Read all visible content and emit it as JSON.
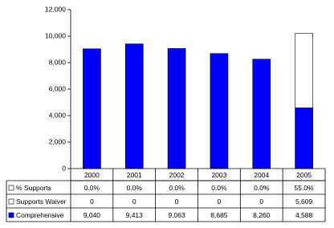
{
  "chart_data": {
    "type": "bar",
    "stacked": true,
    "categories": [
      "2000",
      "2001",
      "2002",
      "2003",
      "2004",
      "2005"
    ],
    "series": [
      {
        "name": "Comprehensive",
        "color": "#0000ff",
        "values": [
          9040,
          9413,
          9063,
          8685,
          8260,
          4588
        ],
        "value_labels": [
          "9,040",
          "9,413",
          "9,063",
          "8,685",
          "8,260",
          "4,588"
        ]
      },
      {
        "name": "Supports Waiver",
        "color": "#ffffff",
        "values": [
          0,
          0,
          0,
          0,
          0,
          5609
        ],
        "value_labels": [
          "0",
          "0",
          "0",
          "0",
          "0",
          "5,609"
        ]
      }
    ],
    "percent_row": {
      "name": "% Supports",
      "color": "#ffffff",
      "values": [
        0,
        0,
        0,
        0,
        0,
        55
      ],
      "value_labels": [
        "0.0%",
        "0.0%",
        "0.0%",
        "0.0%",
        "0.0%",
        "55.0%"
      ]
    },
    "ylim": [
      0,
      12000
    ],
    "yticks": [
      0,
      {
        "value": 2000,
        "label": "2,000"
      },
      {
        "value": 4000,
        "label": "4,000"
      },
      {
        "value": 6000,
        "label": "6,000"
      },
      {
        "value": 8000,
        "label": "8,000"
      },
      {
        "value": 10000,
        "label": "10,000"
      },
      {
        "value": 12000,
        "label": "12,000"
      }
    ],
    "grid": false
  }
}
